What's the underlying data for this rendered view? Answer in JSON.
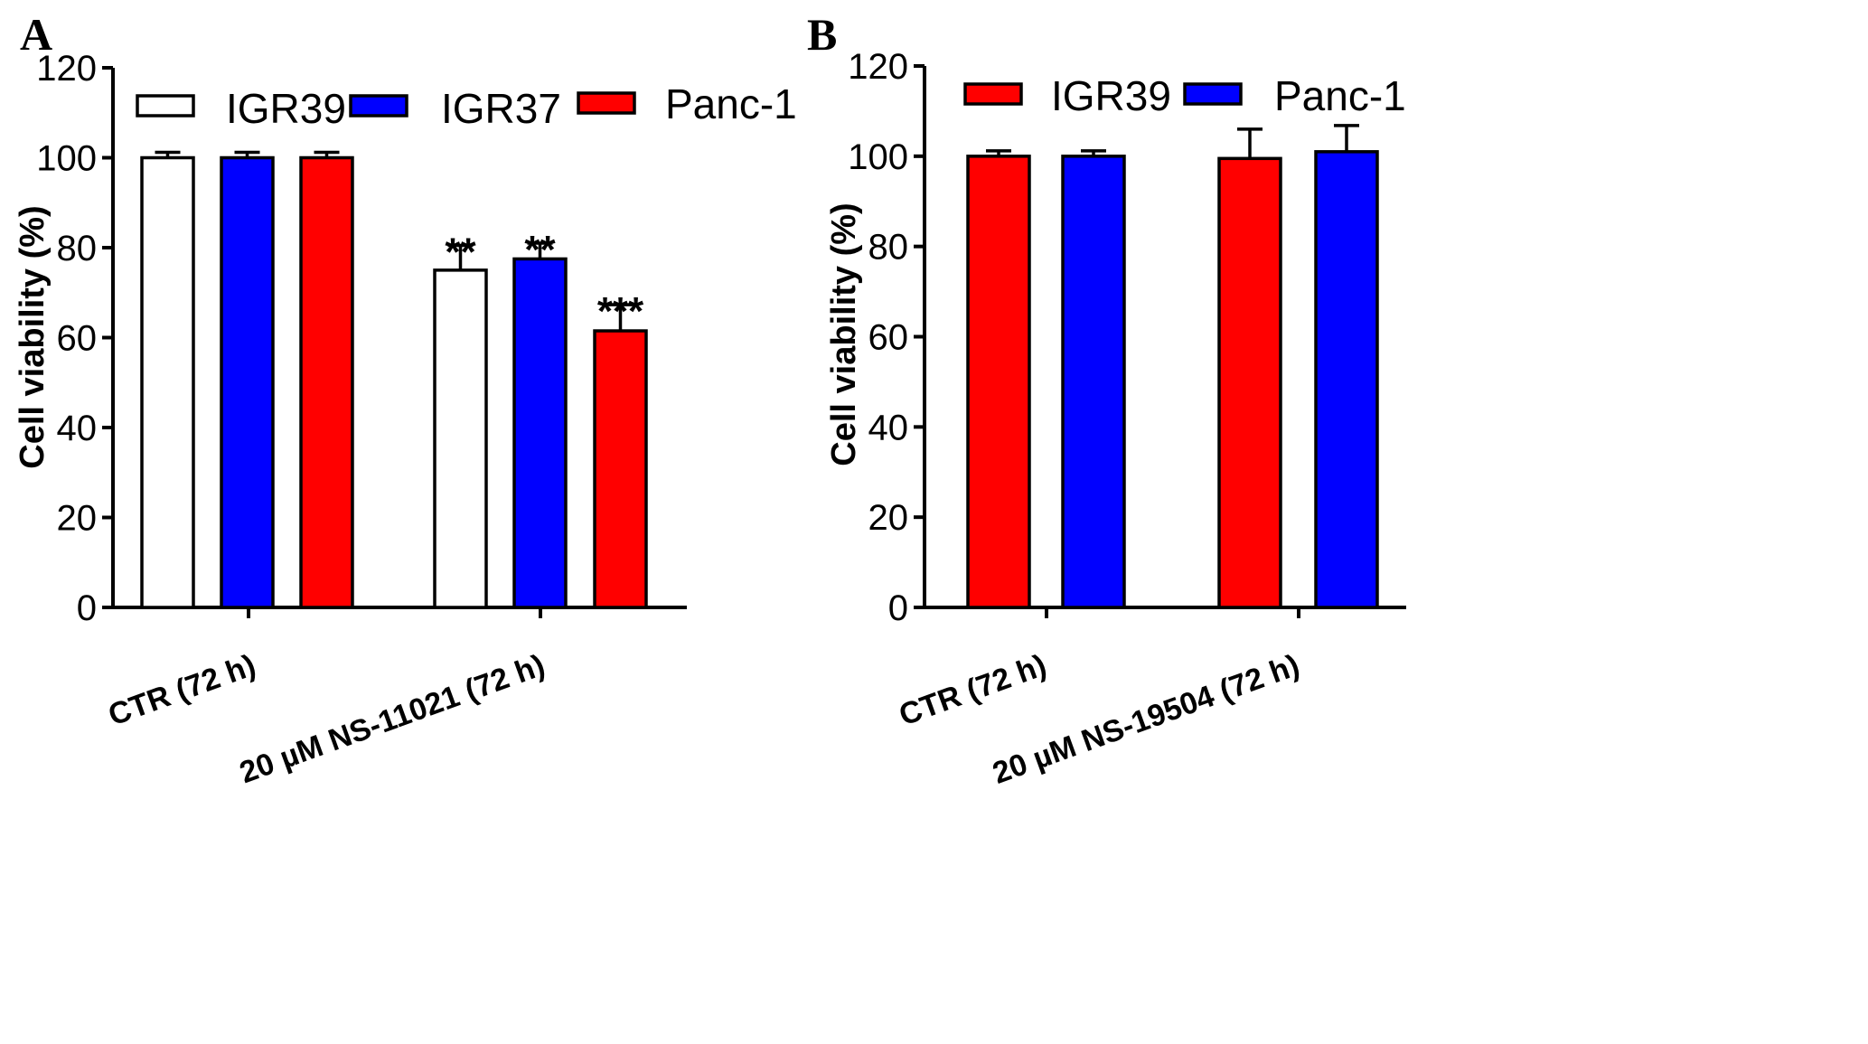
{
  "chart_data": [
    {
      "type": "bar",
      "panel": "A",
      "ylabel": "Cell viability (%)",
      "xlabel": "",
      "ylim": [
        0,
        120
      ],
      "yticks": [
        0,
        20,
        40,
        60,
        80,
        100,
        120
      ],
      "categories": [
        "CTR (72 h)",
        "20 µM NS-11021 (72 h)"
      ],
      "legend_position": "top",
      "series": [
        {
          "name": "IGR39",
          "color": "#ffffff",
          "values": [
            100,
            75
          ],
          "errors": [
            1.2,
            5.5
          ],
          "significance": [
            "",
            "**"
          ]
        },
        {
          "name": "IGR37",
          "color": "#0000ff",
          "values": [
            100,
            77.5
          ],
          "errors": [
            1.2,
            3.5
          ],
          "significance": [
            "",
            "**"
          ]
        },
        {
          "name": "Panc-1",
          "color": "#ff0000",
          "values": [
            100,
            61.5
          ],
          "errors": [
            1.2,
            5.8
          ],
          "significance": [
            "",
            "***"
          ]
        }
      ]
    },
    {
      "type": "bar",
      "panel": "B",
      "ylabel": "Cell viability (%)",
      "xlabel": "",
      "ylim": [
        0,
        120
      ],
      "yticks": [
        0,
        20,
        40,
        60,
        80,
        100,
        120
      ],
      "categories": [
        "CTR (72 h)",
        "20 µM NS-19504 (72 h)"
      ],
      "legend_position": "top",
      "series": [
        {
          "name": "IGR39",
          "color": "#ff0000",
          "values": [
            100,
            99.5
          ],
          "errors": [
            1.2,
            6.5
          ],
          "significance": [
            "",
            ""
          ]
        },
        {
          "name": "Panc-1",
          "color": "#0000ff",
          "values": [
            100,
            101
          ],
          "errors": [
            1.2,
            5.8
          ],
          "significance": [
            "",
            ""
          ]
        }
      ]
    }
  ]
}
